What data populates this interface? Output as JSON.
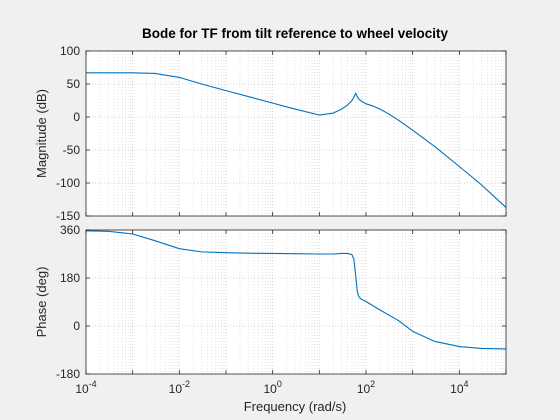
{
  "chart_data": [
    {
      "type": "line",
      "title": "Bode for TF from tilt reference to wheel velocity",
      "xlabel": "",
      "ylabel": "Magnitude (dB)",
      "xscale": "log",
      "xlim": [
        0.0001,
        100000
      ],
      "ylim": [
        -150,
        100
      ],
      "yticks": [
        -150,
        -100,
        -50,
        0,
        50,
        100
      ],
      "grid": "major and minor, dotted",
      "series_color": "#0072BD",
      "series": [
        {
          "x": [
            0.0001,
            0.001,
            0.003,
            0.01,
            0.03,
            0.1,
            0.3,
            1,
            3,
            10,
            20,
            30,
            40,
            50,
            55,
            60,
            65,
            70,
            80,
            100,
            150,
            200,
            300,
            500,
            1000,
            3000,
            10000,
            30000,
            100000
          ],
          "values": [
            67,
            67,
            66,
            60,
            50,
            40,
            31,
            21,
            12,
            3,
            6,
            12,
            18,
            25,
            30,
            36,
            31,
            27,
            24,
            20,
            16,
            12,
            5,
            -5,
            -20,
            -45,
            -75,
            -103,
            -137
          ]
        }
      ]
    },
    {
      "type": "line",
      "xlabel": "Frequency  (rad/s)",
      "ylabel": "Phase (deg)",
      "xscale": "log",
      "xlim": [
        0.0001,
        100000
      ],
      "ylim": [
        -180,
        360
      ],
      "yticks": [
        -180,
        0,
        180,
        360
      ],
      "xtick_bases": [
        "10",
        "10",
        "10",
        "10",
        "10"
      ],
      "xtick_exponents": [
        "-4",
        "-2",
        "0",
        "2",
        "4"
      ],
      "grid": "major and minor, dotted",
      "series_color": "#0072BD",
      "series": [
        {
          "x": [
            0.0001,
            0.0003,
            0.001,
            0.003,
            0.01,
            0.03,
            0.1,
            0.3,
            1,
            3,
            10,
            20,
            30,
            40,
            50,
            55,
            60,
            65,
            70,
            80,
            100,
            200,
            500,
            1000,
            3000,
            10000,
            30000,
            100000
          ],
          "values": [
            357,
            355,
            345,
            320,
            290,
            278,
            275,
            273,
            272,
            271,
            270,
            270,
            272,
            272,
            268,
            250,
            190,
            130,
            110,
            100,
            92,
            60,
            20,
            -20,
            -58,
            -77,
            -84,
            -86
          ]
        }
      ]
    }
  ]
}
